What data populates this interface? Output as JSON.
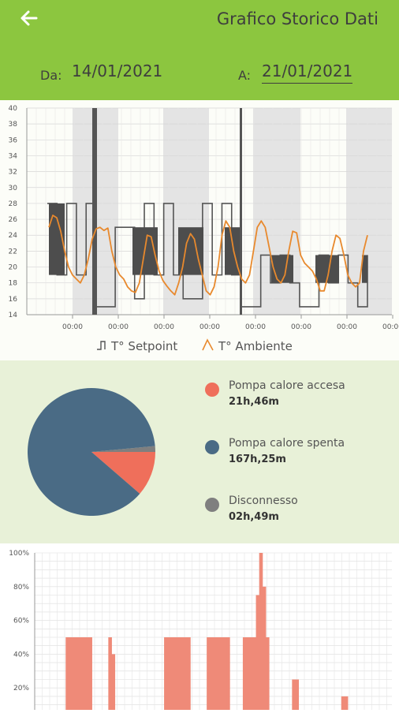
{
  "header": {
    "title": "Grafico Storico Dati",
    "from_label": "Da:",
    "from_date": "14/01/2021",
    "to_label": "A:",
    "to_date": "21/01/2021"
  },
  "colors": {
    "header_bg": "#8cc63f",
    "setpoint": "#555555",
    "ambient": "#e8892d",
    "on": "#ef6f5b",
    "off": "#4a6b85",
    "disconnected": "#7f7f7f"
  },
  "chart_data": [
    {
      "type": "line",
      "title": "",
      "ylim": [
        14,
        40
      ],
      "y_ticks": [
        "40",
        "38",
        "36",
        "34",
        "32",
        "30",
        "28",
        "26",
        "24",
        "22",
        "20",
        "18",
        "16",
        "14"
      ],
      "x_ticks": [
        "00:00",
        "00:00",
        "00:00",
        "00:00",
        "00:00",
        "00:00",
        "00:00",
        "00:00"
      ],
      "legend": [
        "T° Setpoint",
        "T° Ambiente"
      ],
      "series": [
        {
          "name": "T° Ambiente",
          "values": [
            25.0,
            26.5,
            26.2,
            24.5,
            22.0,
            20.0,
            19.0,
            18.5,
            18.0,
            19.0,
            21.0,
            23.5,
            24.8,
            25.0,
            24.6,
            24.9,
            22.0,
            20.0,
            19.0,
            18.5,
            17.5,
            17.0,
            16.8,
            18.0,
            21.0,
            24.0,
            23.8,
            21.5,
            19.5,
            18.3,
            17.6,
            17.0,
            16.5,
            18.0,
            20.0,
            23.0,
            24.2,
            23.5,
            21.0,
            19.0,
            17.0,
            16.5,
            17.5,
            20.0,
            24.0,
            25.8,
            25.0,
            22.0,
            20.0,
            18.5,
            18.0,
            19.0,
            22.0,
            25.0,
            25.8,
            25.0,
            22.5,
            20.0,
            18.5,
            18.0,
            19.0,
            22.0,
            24.5,
            24.3,
            21.5,
            20.5,
            20.0,
            19.5,
            18.5,
            17.0,
            17.0,
            19.0,
            22.0,
            24.0,
            23.6,
            21.5,
            19.0,
            18.0,
            17.5,
            18.0,
            22.0,
            24.0
          ]
        },
        {
          "name": "T° Setpoint",
          "values": [
            28,
            19,
            28,
            19,
            28,
            15,
            15,
            25,
            25,
            16,
            28,
            19,
            28,
            19,
            16,
            16,
            28,
            19,
            28,
            19,
            15,
            15,
            21.5,
            18,
            21.5,
            18,
            15,
            15,
            21.5,
            18,
            21.5,
            18,
            15,
            21.5
          ]
        }
      ]
    },
    {
      "type": "pie",
      "slices": [
        {
          "label": "Pompa calore accesa",
          "value_text": "21h,46m",
          "hours": 21.77
        },
        {
          "label": "Pompa calore spenta",
          "value_text": "167h,25m",
          "hours": 167.42
        },
        {
          "label": "Disconnesso",
          "value_text": "02h,49m",
          "hours": 2.82
        }
      ]
    },
    {
      "type": "bar",
      "ylim": [
        0,
        100
      ],
      "y_ticks": [
        "100%",
        "80%",
        "60%",
        "40%",
        "20%"
      ],
      "series": [
        {
          "name": "",
          "values": [
            0,
            0,
            0,
            0,
            0,
            0,
            0,
            0,
            50,
            50,
            50,
            50,
            50,
            50,
            50,
            50,
            0,
            0,
            0,
            0,
            0,
            50,
            40,
            0,
            0,
            0,
            0,
            0,
            0,
            0,
            0,
            0,
            0,
            0,
            0,
            0,
            0,
            0,
            50,
            50,
            50,
            50,
            50,
            50,
            50,
            50,
            0,
            0,
            0,
            0,
            0,
            50,
            50,
            50,
            50,
            50,
            50,
            50,
            0,
            0,
            0,
            0,
            50,
            50,
            50,
            50,
            75,
            100,
            80,
            50,
            0,
            0,
            0,
            0,
            0,
            0,
            0,
            25,
            25,
            0,
            0,
            0,
            0,
            0,
            0,
            0,
            0,
            0,
            0,
            0,
            0,
            0,
            15,
            15,
            0,
            0,
            0,
            0,
            0,
            0
          ]
        }
      ]
    }
  ]
}
